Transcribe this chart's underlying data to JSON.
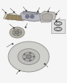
{
  "bg_color": "#f5f5f5",
  "fig_width": 0.98,
  "fig_height": 1.2,
  "dpi": 100,
  "component_color_light": "#d8d8d8",
  "component_color_mid": "#b8b8b8",
  "component_color_dark": "#989898",
  "caliper_color": "#c0c0c8",
  "pad_backing_color": "#c8c0a8",
  "pad_friction_color": "#988870",
  "rotor_outer": "#d0d0d0",
  "rotor_inner": "#b8b8b8",
  "hub_color": "#a8a8a8",
  "line_color": "#444444",
  "dot_color": "#222222"
}
